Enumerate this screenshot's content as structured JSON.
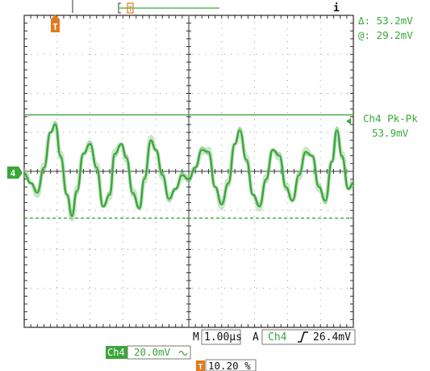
{
  "channel": {
    "marker": "4",
    "color": "#3aa63a",
    "trigger_color": "#e07a1e"
  },
  "cursors": {
    "delta": "Δ:  53.2mV",
    "at": "@:  29.2mV"
  },
  "measurement": {
    "name": "Ch4 Pk-Pk",
    "value": "53.9mV"
  },
  "timebase": {
    "prefix": "M",
    "value": "1.00μs"
  },
  "trigger": {
    "mode": "A",
    "source": "Ch4",
    "slope_icon": "rising-edge-icon",
    "level": "26.4mV",
    "marker": "T",
    "position": "10.20 %"
  },
  "vertical": {
    "channel_label": "Ch4",
    "scale": "20.0mV",
    "coupling_icon": "ac-coupling-icon"
  },
  "top_cursor_marker": "i",
  "chart_data": {
    "type": "line",
    "title": "",
    "xlabel": "",
    "ylabel": "",
    "xlim": [
      0,
      10
    ],
    "ylim": [
      -4,
      4
    ],
    "grid": true,
    "series": [
      {
        "values": [
          [
            0.0,
            -0.05
          ],
          [
            0.2,
            -0.3
          ],
          [
            0.4,
            -0.55
          ],
          [
            0.6,
            0.1
          ],
          [
            0.8,
            1.0
          ],
          [
            0.95,
            1.2
          ],
          [
            1.1,
            0.4
          ],
          [
            1.3,
            -0.6
          ],
          [
            1.45,
            -1.15
          ],
          [
            1.6,
            -0.5
          ],
          [
            1.8,
            0.45
          ],
          [
            2.0,
            0.7
          ],
          [
            2.2,
            0.1
          ],
          [
            2.4,
            -0.9
          ],
          [
            2.6,
            -0.6
          ],
          [
            2.75,
            0.45
          ],
          [
            2.95,
            0.7
          ],
          [
            3.1,
            0.35
          ],
          [
            3.3,
            -0.55
          ],
          [
            3.5,
            -0.95
          ],
          [
            3.65,
            -0.2
          ],
          [
            3.85,
            0.8
          ],
          [
            4.0,
            0.55
          ],
          [
            4.2,
            -0.1
          ],
          [
            4.4,
            -0.7
          ],
          [
            4.6,
            -0.45
          ],
          [
            4.8,
            -0.1
          ],
          [
            5.0,
            -0.2
          ],
          [
            5.2,
            0.1
          ],
          [
            5.4,
            0.55
          ],
          [
            5.6,
            0.5
          ],
          [
            5.8,
            -0.4
          ],
          [
            6.0,
            -0.85
          ],
          [
            6.2,
            -0.3
          ],
          [
            6.4,
            0.7
          ],
          [
            6.55,
            1.05
          ],
          [
            6.75,
            0.3
          ],
          [
            6.95,
            -0.6
          ],
          [
            7.15,
            -0.9
          ],
          [
            7.35,
            -0.2
          ],
          [
            7.55,
            0.55
          ],
          [
            7.75,
            0.4
          ],
          [
            7.95,
            -0.4
          ],
          [
            8.15,
            -0.75
          ],
          [
            8.35,
            -0.1
          ],
          [
            8.55,
            0.5
          ],
          [
            8.75,
            0.4
          ],
          [
            8.95,
            -0.4
          ],
          [
            9.15,
            -0.75
          ],
          [
            9.35,
            0.25
          ],
          [
            9.5,
            1.05
          ],
          [
            9.65,
            0.4
          ],
          [
            9.85,
            -0.45
          ],
          [
            10.0,
            -0.3
          ]
        ]
      }
    ],
    "horizontal_cursors": [
      1.45,
      -1.2
    ]
  }
}
